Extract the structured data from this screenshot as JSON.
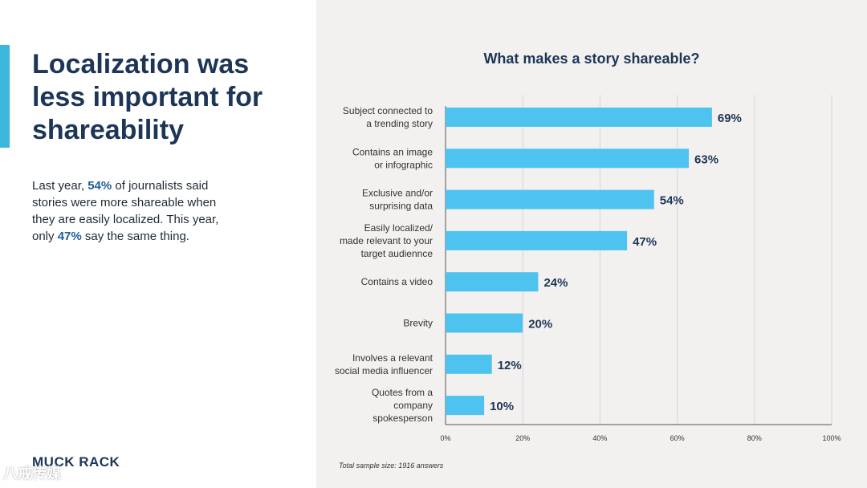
{
  "slide": {
    "headline": "Localization was less important for shareability",
    "body_parts": [
      {
        "text": "Last year, ",
        "highlight": false
      },
      {
        "text": "54%",
        "highlight": true
      },
      {
        "text": " of journalists said stories were more shareable when they are easily localized. This year, only ",
        "highlight": false
      },
      {
        "text": "47%",
        "highlight": true
      },
      {
        "text": " say the same thing.",
        "highlight": false
      }
    ],
    "logo": "MUCK RACK",
    "watermark": "八戒传媒",
    "footnote": "Total sample size: 1916 answers"
  },
  "colors": {
    "accent": "#3BB6DC",
    "bar": "#4FC3F0",
    "navy": "#1D3557",
    "highlight": "#1E5C9B",
    "right_bg": "#F2F1EF",
    "grid": "#D5D5D5"
  },
  "chart_data": {
    "type": "bar",
    "orientation": "horizontal",
    "title": "What makes a story shareable?",
    "categories": [
      [
        "Subject connected to",
        "a trending story"
      ],
      [
        "Contains an image",
        "or infographic"
      ],
      [
        "Exclusive and/or",
        "surprising data"
      ],
      [
        "Easily localized/",
        "made relevant to your",
        "target audiennce"
      ],
      [
        "Contains a video"
      ],
      [
        "Brevity"
      ],
      [
        "Involves a relevant",
        "social media influencer"
      ],
      [
        "Quotes from a",
        "company",
        "spokesperson"
      ]
    ],
    "values": [
      69,
      63,
      54,
      47,
      24,
      20,
      12,
      10
    ],
    "value_labels": [
      "69%",
      "63%",
      "54%",
      "47%",
      "24%",
      "20%",
      "12%",
      "10%"
    ],
    "xlim": [
      0,
      100
    ],
    "ticks": [
      0,
      20,
      40,
      60,
      80,
      100
    ],
    "tick_labels": [
      "0%",
      "20%",
      "40%",
      "60%",
      "80%",
      "100%"
    ],
    "grid": true,
    "xlabel": "",
    "ylabel": ""
  }
}
